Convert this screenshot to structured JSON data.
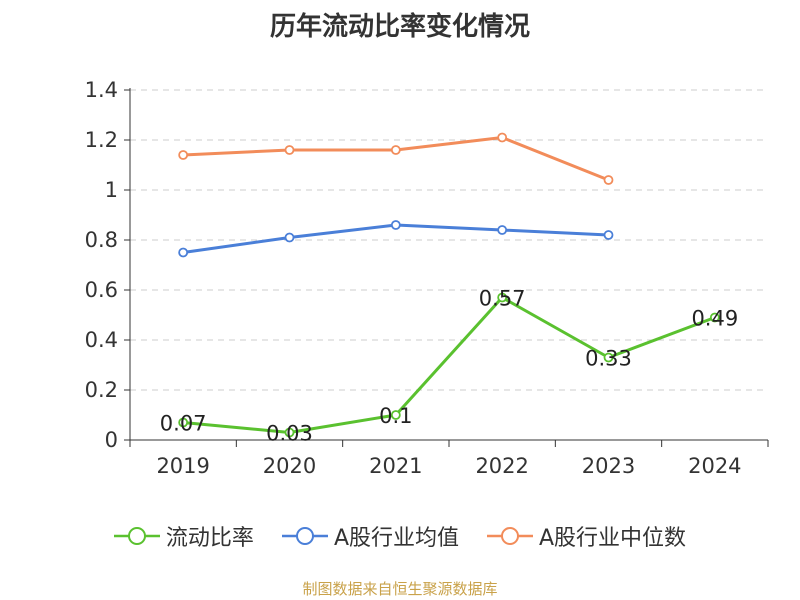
{
  "chart_data": {
    "type": "line",
    "title": "历年流动比率变化情况",
    "categories": [
      "2019",
      "2020",
      "2021",
      "2022",
      "2023",
      "2024"
    ],
    "ylim": [
      0,
      1.4
    ],
    "yticks": [
      "0",
      "0.2",
      "0.4",
      "0.6",
      "0.8",
      "1",
      "1.2",
      "1.4"
    ],
    "grid": true,
    "legend_position": "bottom",
    "series": [
      {
        "name": "流动比率",
        "color": "#5ac12f",
        "values": [
          0.07,
          0.03,
          0.1,
          0.57,
          0.33,
          0.49
        ],
        "labels": [
          "0.07",
          "0.03",
          "0.1",
          "0.57",
          "0.33",
          "0.49"
        ]
      },
      {
        "name": "A股行业均值",
        "color": "#4a7fd8",
        "values": [
          0.75,
          0.81,
          0.86,
          0.84,
          0.82,
          null
        ]
      },
      {
        "name": "A股行业中位数",
        "color": "#f28c5a",
        "values": [
          1.14,
          1.16,
          1.16,
          1.21,
          1.04,
          null
        ]
      }
    ]
  },
  "footer": {
    "source": "制图数据来自恒生聚源数据库"
  }
}
